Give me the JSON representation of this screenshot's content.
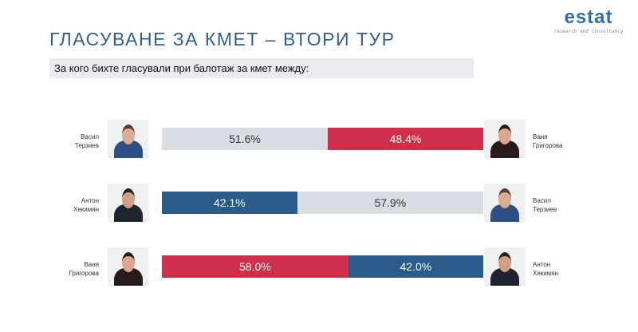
{
  "title": "ГЛАСУВАНЕ ЗА КМЕТ – ВТОРИ ТУР",
  "subtitle": "За кого бихте гласували при балотаж за кмет между:",
  "logo": {
    "word": "estat",
    "tagline": "research and consultancy"
  },
  "colors": {
    "gray": "#d9dde4",
    "red": "#cf2f4b",
    "blue": "#2b5b8b"
  },
  "chart_data": {
    "type": "bar",
    "stacked": true,
    "orientation": "horizontal",
    "xlim": [
      0,
      100
    ],
    "rows": [
      {
        "left": {
          "name": "Васил Терзиев",
          "value": 51.6,
          "label": "51.6%",
          "color": "gray"
        },
        "right": {
          "name": "Ваня Григорова",
          "value": 48.4,
          "label": "48.4%",
          "color": "red"
        }
      },
      {
        "left": {
          "name": "Антон Хекимян",
          "value": 42.1,
          "label": "42.1%",
          "color": "blue"
        },
        "right": {
          "name": "Васил Терзиев",
          "value": 57.9,
          "label": "57.9%",
          "color": "gray"
        }
      },
      {
        "left": {
          "name": "Ваня Григорова",
          "value": 58.0,
          "label": "58.0%",
          "color": "red"
        },
        "right": {
          "name": "Антон Хекимян",
          "value": 42.0,
          "label": "42.0%",
          "color": "blue"
        }
      }
    ]
  }
}
